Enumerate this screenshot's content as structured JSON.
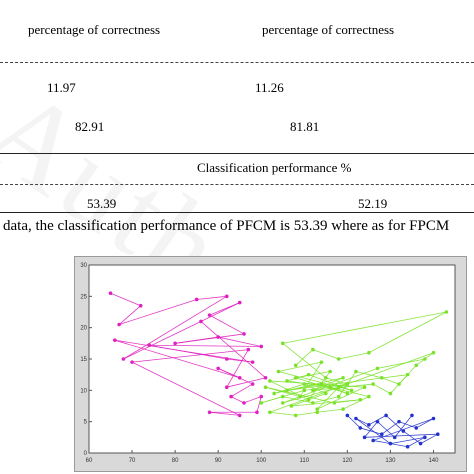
{
  "header": {
    "col1": "percentage of correctness",
    "col2": "percentage of correctness"
  },
  "rows": {
    "r1c1": "11.97",
    "r1c2": "11.26",
    "r2c1": "82.91",
    "r2c2": "81.81"
  },
  "classification_header": "Classification performance %",
  "classification": {
    "c1": "53.39",
    "c2": "52.19"
  },
  "body_text": "data, the classification performance of PFCM is 53.39 where as for FPCM",
  "watermark_text": "Author",
  "chart_data": {
    "type": "scatter",
    "xlim": [
      60,
      145
    ],
    "ylim": [
      0,
      30
    ],
    "x_ticks": [
      60,
      70,
      80,
      90,
      100,
      110,
      120,
      130,
      140
    ],
    "y_ticks": [
      0,
      5,
      10,
      15,
      20,
      25,
      30
    ],
    "grid": false,
    "colors": {
      "magenta": "#e020c0",
      "green": "#7be22a",
      "blue": "#2233cc"
    },
    "series": [
      {
        "color": "magenta",
        "points": [
          [
            65,
            25.5
          ],
          [
            72,
            23.5
          ],
          [
            67,
            20.5
          ],
          [
            85,
            24.5
          ],
          [
            92,
            25
          ],
          [
            68,
            15
          ],
          [
            95,
            24
          ],
          [
            88,
            22
          ],
          [
            96,
            19
          ],
          [
            80,
            17.5
          ],
          [
            90,
            18.5
          ],
          [
            100,
            17
          ],
          [
            74,
            17.2
          ],
          [
            92,
            15
          ],
          [
            98,
            14.5
          ],
          [
            66,
            18
          ],
          [
            95,
            12
          ],
          [
            90,
            13.5
          ],
          [
            98,
            11
          ],
          [
            93,
            9
          ],
          [
            96,
            8
          ],
          [
            100,
            9
          ],
          [
            99,
            6.5
          ],
          [
            88,
            6.5
          ],
          [
            95,
            6
          ],
          [
            70,
            14.5
          ],
          [
            97,
            16.5
          ],
          [
            92,
            10.5
          ],
          [
            101,
            12
          ],
          [
            86,
            21
          ]
        ]
      },
      {
        "color": "green",
        "points": [
          [
            108,
            14
          ],
          [
            112,
            16.5
          ],
          [
            118,
            15
          ],
          [
            125,
            16
          ],
          [
            143,
            22.5
          ],
          [
            105,
            17.5
          ],
          [
            115,
            12
          ],
          [
            120,
            11
          ],
          [
            110,
            10
          ],
          [
            100,
            8
          ],
          [
            105,
            9
          ],
          [
            112,
            8
          ],
          [
            118,
            9
          ],
          [
            122,
            13
          ],
          [
            128,
            12
          ],
          [
            132,
            11
          ],
          [
            136,
            14
          ],
          [
            140,
            16
          ],
          [
            102,
            6.5
          ],
          [
            108,
            6
          ],
          [
            113,
            6.5
          ],
          [
            119,
            7
          ],
          [
            125,
            9
          ],
          [
            116,
            10.5
          ],
          [
            106,
            11.5
          ],
          [
            111,
            12.5
          ],
          [
            121,
            10
          ],
          [
            104,
            13
          ],
          [
            114,
            14.5
          ],
          [
            109,
            9
          ],
          [
            101,
            10.5
          ],
          [
            117,
            8
          ],
          [
            123,
            8.5
          ],
          [
            107,
            7.5
          ],
          [
            115,
            9.5
          ],
          [
            110,
            11
          ],
          [
            103,
            9.5
          ],
          [
            119,
            12
          ],
          [
            112,
            10
          ],
          [
            126,
            11
          ],
          [
            130,
            9.5
          ],
          [
            134,
            12.5
          ],
          [
            106,
            10
          ],
          [
            114,
            11
          ],
          [
            120,
            9.5
          ],
          [
            108,
            12
          ],
          [
            116,
            13
          ],
          [
            111,
            8.5
          ],
          [
            102,
            11.5
          ],
          [
            124,
            10.5
          ],
          [
            113,
            7
          ],
          [
            118,
            10.5
          ],
          [
            105,
            8
          ],
          [
            127,
            13.5
          ],
          [
            138,
            15
          ]
        ]
      },
      {
        "color": "blue",
        "points": [
          [
            120,
            6
          ],
          [
            123,
            4
          ],
          [
            128,
            3
          ],
          [
            132,
            5
          ],
          [
            136,
            4
          ],
          [
            140,
            5.5
          ],
          [
            126,
            2
          ],
          [
            134,
            1
          ],
          [
            138,
            2.5
          ],
          [
            130,
            1.5
          ],
          [
            122,
            5.5
          ],
          [
            125,
            4.5
          ],
          [
            129,
            6
          ],
          [
            133,
            3.5
          ],
          [
            137,
            1.5
          ],
          [
            141,
            3
          ],
          [
            124,
            2.5
          ],
          [
            127,
            5
          ],
          [
            131,
            2.5
          ],
          [
            135,
            6
          ]
        ]
      }
    ]
  }
}
